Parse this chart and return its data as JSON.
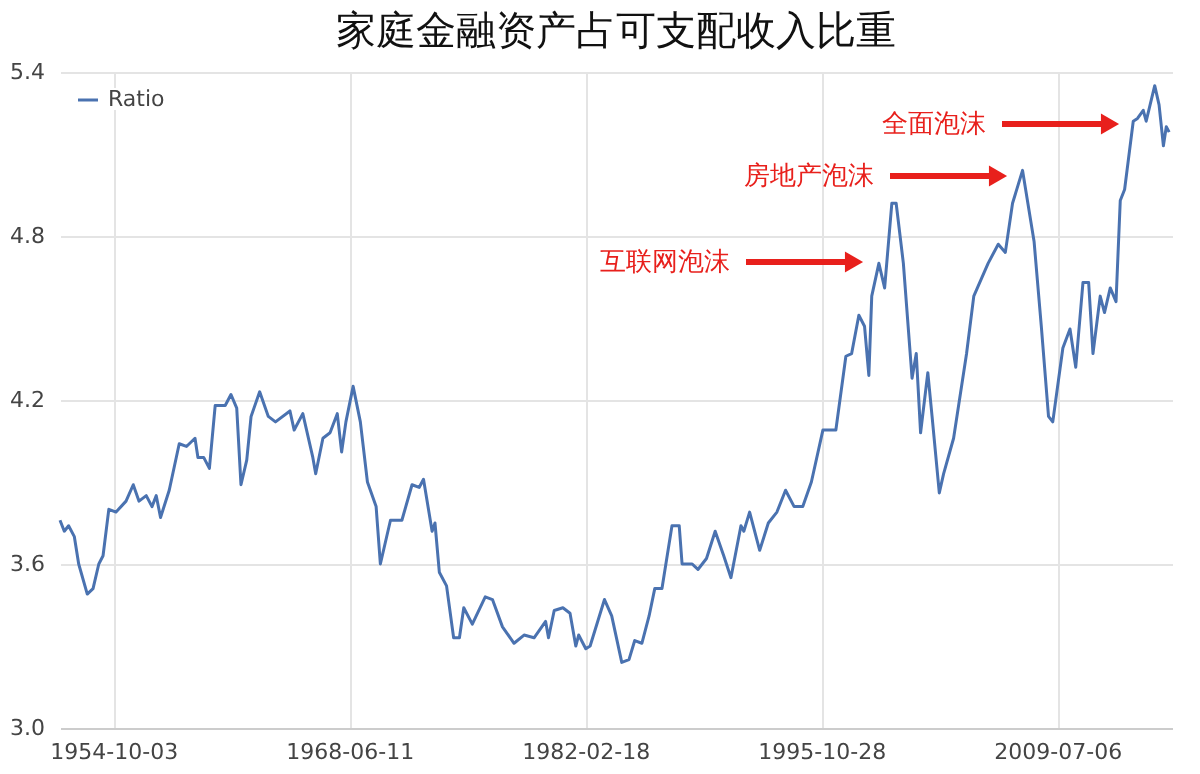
{
  "chart_data": {
    "type": "line",
    "title": "家庭金融资产占可支配收入比重",
    "x": [
      "1951-09",
      "1951-12",
      "1952-03",
      "1952-07",
      "1952-10",
      "1953-04",
      "1953-08",
      "1953-12",
      "1954-03",
      "1954-07",
      "1954-12",
      "1955-07",
      "1955-12",
      "1956-04",
      "1956-09",
      "1957-01",
      "1957-04",
      "1957-07",
      "1958-01",
      "1958-08",
      "1959-01",
      "1959-07",
      "1959-09",
      "1960-01",
      "1960-05",
      "1960-09",
      "1961-04",
      "1961-08",
      "1961-12",
      "1962-03",
      "1962-07",
      "1962-10",
      "1963-04",
      "1963-10",
      "1964-03",
      "1965-01",
      "1965-04",
      "1965-10",
      "1966-05",
      "1966-07",
      "1966-12",
      "1967-05",
      "1967-10",
      "1968-01",
      "1968-04",
      "1968-09",
      "1969-02",
      "1969-07",
      "1970-01",
      "1970-04",
      "1970-11",
      "1971-07",
      "1972-02",
      "1972-07",
      "1972-10",
      "1973-04",
      "1973-06",
      "1973-09",
      "1974-02",
      "1974-07",
      "1974-11",
      "1975-02",
      "1975-08",
      "1976-05",
      "1976-10",
      "1977-05",
      "1978-01",
      "1978-08",
      "1979-03",
      "1979-11",
      "1980-01",
      "1980-05",
      "1980-11",
      "1981-04",
      "1981-08",
      "1981-10",
      "1982-03",
      "1982-06",
      "1983-04",
      "1983-09",
      "1984-04",
      "1984-09",
      "1985-01",
      "1985-06",
      "1985-11",
      "1986-03",
      "1986-08",
      "1987-03",
      "1987-08",
      "1987-10",
      "1988-05",
      "1988-09",
      "1989-03",
      "1989-09",
      "1990-03",
      "1990-08",
      "1991-03",
      "1991-05",
      "1991-09",
      "1992-04",
      "1992-10",
      "1993-04",
      "1993-10",
      "1994-04",
      "1994-10",
      "1995-04",
      "1995-12",
      "1996-09",
      "1997-04",
      "1997-08",
      "1998-01",
      "1998-05",
      "1998-08",
      "1998-10",
      "1999-03",
      "1999-07",
      "1999-12",
      "2000-03",
      "2000-08",
      "2001-02",
      "2001-05",
      "2001-08",
      "2002-01",
      "2002-04",
      "2002-09",
      "2002-12",
      "2003-07",
      "2004-04",
      "2004-09",
      "2005-07",
      "2006-02",
      "2006-07",
      "2006-12",
      "2007-07",
      "2008-03",
      "2008-08",
      "2009-01",
      "2009-04",
      "2009-11",
      "2010-04",
      "2010-08",
      "2011-01",
      "2011-05",
      "2011-08",
      "2012-01",
      "2012-04",
      "2012-08",
      "2012-12",
      "2013-03",
      "2013-06",
      "2013-12",
      "2014-03",
      "2014-07",
      "2014-09",
      "2015-03",
      "2015-06",
      "2015-09",
      "2015-11",
      "2016-01"
    ],
    "series": [
      {
        "name": "Ratio",
        "color": "#4a72b0",
        "values": [
          3.76,
          3.72,
          3.74,
          3.7,
          3.6,
          3.49,
          3.51,
          3.6,
          3.63,
          3.8,
          3.79,
          3.83,
          3.89,
          3.83,
          3.85,
          3.81,
          3.85,
          3.77,
          3.87,
          4.04,
          4.03,
          4.06,
          3.99,
          3.99,
          3.95,
          4.18,
          4.18,
          4.22,
          4.17,
          3.89,
          3.98,
          4.14,
          4.23,
          4.14,
          4.12,
          4.16,
          4.09,
          4.15,
          3.99,
          3.93,
          4.06,
          4.08,
          4.15,
          4.01,
          4.12,
          4.25,
          4.12,
          3.9,
          3.81,
          3.6,
          3.76,
          3.76,
          3.89,
          3.88,
          3.91,
          3.72,
          3.75,
          3.57,
          3.52,
          3.33,
          3.33,
          3.44,
          3.38,
          3.48,
          3.47,
          3.37,
          3.31,
          3.34,
          3.33,
          3.39,
          3.33,
          3.43,
          3.44,
          3.42,
          3.3,
          3.34,
          3.29,
          3.3,
          3.47,
          3.41,
          3.24,
          3.25,
          3.32,
          3.31,
          3.41,
          3.51,
          3.51,
          3.74,
          3.74,
          3.6,
          3.6,
          3.58,
          3.62,
          3.72,
          3.63,
          3.55,
          3.74,
          3.72,
          3.79,
          3.65,
          3.75,
          3.79,
          3.87,
          3.81,
          3.81,
          3.9,
          4.09,
          4.09,
          4.36,
          4.37,
          4.51,
          4.47,
          4.29,
          4.58,
          4.7,
          4.61,
          4.92,
          4.92,
          4.7,
          4.28,
          4.37,
          4.08,
          4.3,
          4.14,
          3.86,
          3.93,
          4.06,
          4.37,
          4.58,
          4.7,
          4.77,
          4.74,
          4.92,
          5.04,
          4.78,
          4.47,
          4.14,
          4.12,
          4.39,
          4.46,
          4.32,
          4.63,
          4.63,
          4.37,
          4.58,
          4.52,
          4.61,
          4.56,
          4.93,
          4.97,
          5.22,
          5.23,
          5.26,
          5.22,
          5.35,
          5.28,
          5.13,
          5.2,
          5.18
        ]
      }
    ],
    "xlim": [
      "1951-09",
      "2016-03"
    ],
    "xticks": [
      {
        "value": "1954-10-03",
        "label": "1954-10-03"
      },
      {
        "value": "1968-06-11",
        "label": "1968-06-11"
      },
      {
        "value": "1982-02-18",
        "label": "1982-02-18"
      },
      {
        "value": "1995-10-28",
        "label": "1995-10-28"
      },
      {
        "value": "2009-07-06",
        "label": "2009-07-06"
      }
    ],
    "ylim": [
      3.0,
      5.4
    ],
    "yticks": [
      {
        "value": 3,
        "label": "3.0"
      },
      {
        "value": 3.6,
        "label": "3.6"
      },
      {
        "value": 4.2,
        "label": "4.2"
      },
      {
        "value": 4.8,
        "label": "4.8"
      },
      {
        "value": 5.4,
        "label": "5.4"
      }
    ],
    "grid": true,
    "legend": "top left",
    "annotations": [
      "互联网泡沫",
      "房地产泡沫",
      "全面泡沫"
    ]
  }
}
